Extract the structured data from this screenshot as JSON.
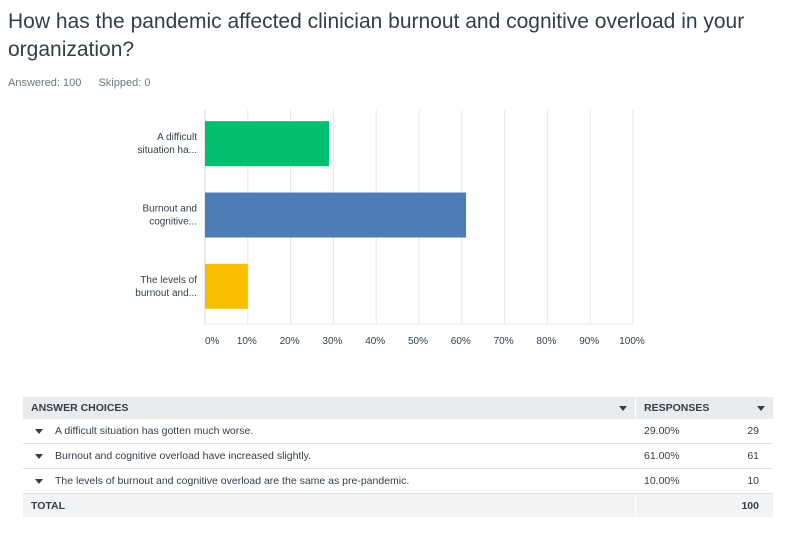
{
  "question": {
    "title": "How has the pandemic affected clinician burnout and cognitive overload in your organization?",
    "answered": "Answered: 100",
    "skipped": "Skipped: 0"
  },
  "chart_data": {
    "type": "bar",
    "orientation": "horizontal",
    "categories": [
      "A difficult situation ha...",
      "Burnout and cognitive...",
      "The levels of burnout and..."
    ],
    "category_lines": [
      [
        "A difficult",
        "situation ha..."
      ],
      [
        "Burnout and",
        "cognitive..."
      ],
      [
        "The levels of",
        "burnout and..."
      ]
    ],
    "values": [
      29,
      61,
      10
    ],
    "colors": [
      "#00bf6f",
      "#507cb6",
      "#f9be00"
    ],
    "xlim": [
      0,
      100
    ],
    "xticks": [
      "0%",
      "10%",
      "20%",
      "30%",
      "40%",
      "50%",
      "60%",
      "70%",
      "80%",
      "90%",
      "100%"
    ],
    "grid": true
  },
  "table": {
    "header_choices": "ANSWER CHOICES",
    "header_responses": "RESPONSES",
    "rows": [
      {
        "choice": "A difficult situation has gotten much worse.",
        "percent": "29.00%",
        "count": "29"
      },
      {
        "choice": "Burnout and cognitive overload have increased slightly.",
        "percent": "61.00%",
        "count": "61"
      },
      {
        "choice": "The levels of burnout and cognitive overload are the same as pre-pandemic.",
        "percent": "10.00%",
        "count": "10"
      }
    ],
    "total_label": "TOTAL",
    "total_value": "100"
  }
}
